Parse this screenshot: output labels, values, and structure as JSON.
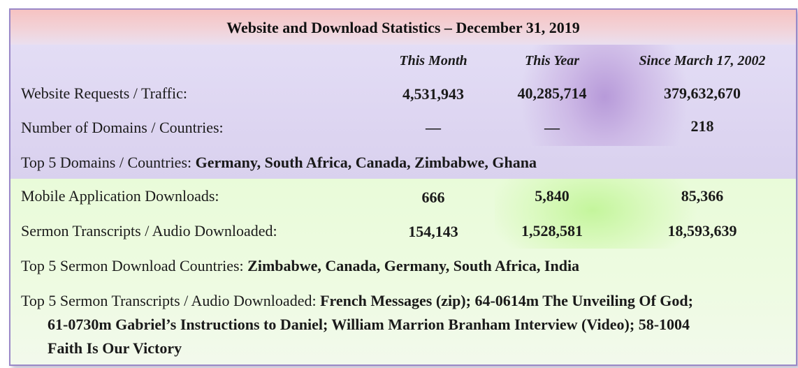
{
  "title": "Website and Download Statistics – December 31, 2019",
  "columns": {
    "this_month": "This Month",
    "this_year": "This Year",
    "since": "Since March 17, 2002"
  },
  "website": {
    "requests_label": "Website Requests / Traffic:",
    "requests_month": "4,531,943",
    "requests_year": "40,285,714",
    "requests_since": "379,632,670",
    "domains_label": "Number of Domains / Countries:",
    "domains_month": "—",
    "domains_year": "—",
    "domains_since": "218",
    "top5_label": "Top 5 Domains / Countries:",
    "top5_value": "Germany, South Africa, Canada, Zimbabwe, Ghana"
  },
  "downloads": {
    "mobile_label": "Mobile Application Downloads:",
    "mobile_month": "666",
    "mobile_year": "5,840",
    "mobile_since": "85,366",
    "sermon_label": "Sermon Transcripts / Audio Downloaded:",
    "sermon_month": "154,143",
    "sermon_year": "1,528,581",
    "sermon_since": "18,593,639",
    "top5_countries_label": "Top 5 Sermon Download Countries:",
    "top5_countries_value": "Zimbabwe, Canada, Germany, South Africa, India",
    "top5_sermons_label": "Top 5 Sermon Transcripts / Audio Downloaded:",
    "top5_sermons_line1": "French Messages (zip); 64-0614m The Unveiling Of God;",
    "top5_sermons_line2": "61-0730m Gabriel’s Instructions to Daniel; William Marrion Branham Interview (Video); 58-1004",
    "top5_sermons_line3": "Faith Is Our Victory"
  },
  "colors": {
    "title_band": "#f6c3c2",
    "website_band": "#ddd5f1",
    "website_highlight": "#b79ad9",
    "downloads_band": "#eefbe2",
    "downloads_highlight": "#c4f59c",
    "border": "#9a88c8"
  }
}
